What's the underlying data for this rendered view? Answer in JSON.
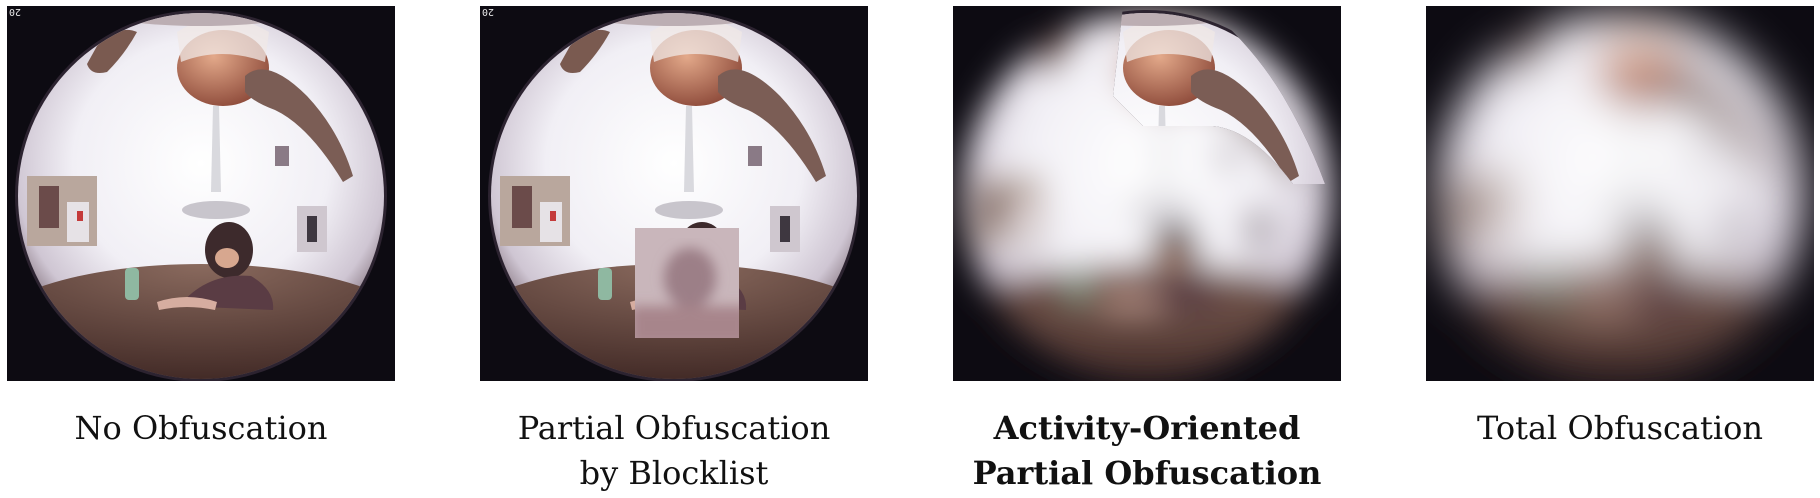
{
  "panels": [
    {
      "id": "no",
      "label_lines": [
        "No Obfuscation"
      ],
      "bold": false,
      "corner_text": "20"
    },
    {
      "id": "partial",
      "label_lines": [
        "Partial Obfuscation",
        "by Blocklist"
      ],
      "bold": false,
      "corner_text": "20"
    },
    {
      "id": "activity",
      "label_lines": [
        "Activity-Oriented",
        "Partial Obfuscation"
      ],
      "bold": true,
      "corner_text": ""
    },
    {
      "id": "total",
      "label_lines": [
        "Total Obfuscation"
      ],
      "bold": false,
      "corner_text": ""
    }
  ],
  "colors": {
    "background": "#ffffff",
    "frame": "#0d0b12",
    "text": "#111111"
  }
}
